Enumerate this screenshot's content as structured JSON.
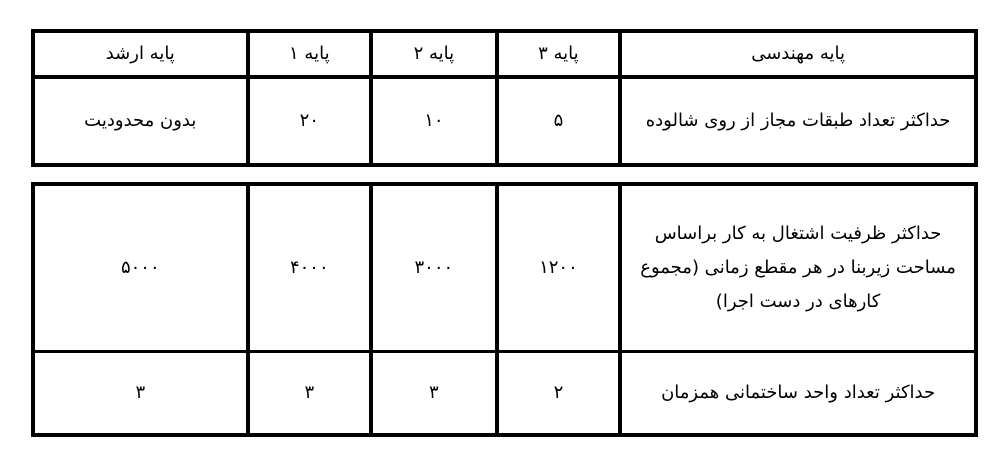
{
  "header": [
    "پایه مهندسی",
    "پایه ۳",
    "پایه ۲",
    "پایه ۱",
    "پایه ارشد"
  ],
  "rows": [
    {
      "label": "حداکثر تعداد طبقات مجاز از روی شالوده",
      "values": [
        "۵",
        "۱۰",
        "۲۰",
        "بدون محدودیت"
      ]
    },
    {
      "label": "حداکثر ظرفیت اشتغال به کار براساس مساحت زیربنا در هر مقطع زمانی (مجموع کارهای در دست اجرا)",
      "values": [
        "۱۲۰۰",
        "۳۰۰۰",
        "۴۰۰۰",
        "۵۰۰۰"
      ]
    },
    {
      "label": "حداکثر تعداد واحد ساختمانی همزمان",
      "values": [
        "۲",
        "۳",
        "۳",
        "۳"
      ]
    }
  ]
}
